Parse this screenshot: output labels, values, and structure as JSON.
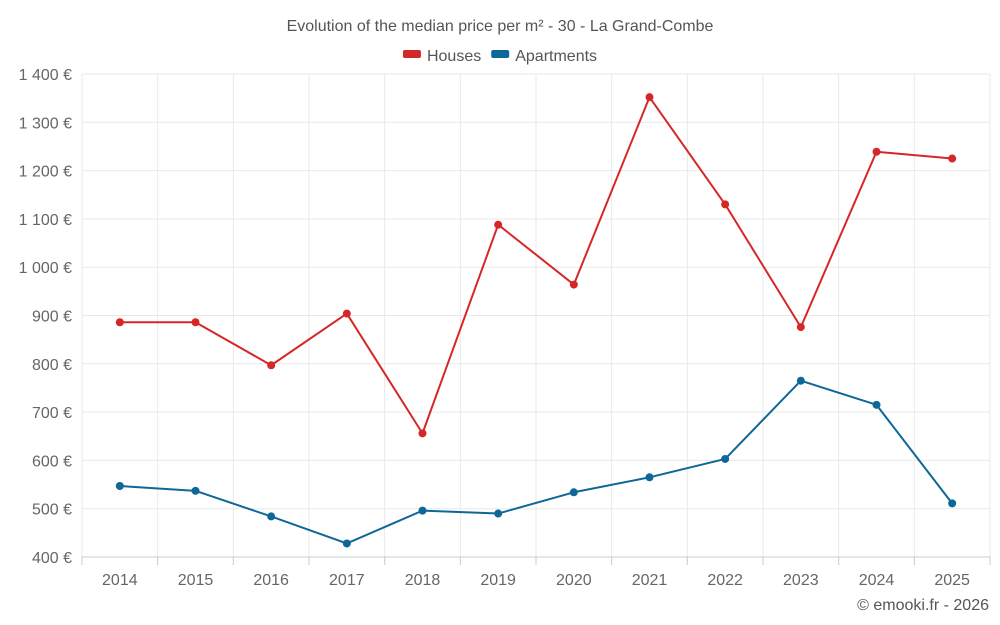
{
  "chart_data": {
    "type": "line",
    "title": "Evolution of the median price per m² - 30 - La Grand-Combe",
    "categories": [
      "2014",
      "2015",
      "2016",
      "2017",
      "2018",
      "2019",
      "2020",
      "2021",
      "2022",
      "2023",
      "2024",
      "2025"
    ],
    "series": [
      {
        "name": "Houses",
        "color": "#d62728",
        "values": [
          886,
          886,
          797,
          904,
          656,
          1088,
          964,
          1352,
          1130,
          876,
          1239,
          1225
        ]
      },
      {
        "name": "Apartments",
        "color": "#0d6797",
        "values": [
          547,
          537,
          484,
          428,
          496,
          490,
          534,
          565,
          603,
          765,
          715,
          511
        ]
      }
    ],
    "ylim": [
      400,
      1400
    ],
    "yticks": [
      400,
      500,
      600,
      700,
      800,
      900,
      1000,
      1100,
      1200,
      1300,
      1400
    ],
    "ytick_labels": [
      "400 €",
      "500 €",
      "600 €",
      "700 €",
      "800 €",
      "900 €",
      "1 000 €",
      "1 100 €",
      "1 200 €",
      "1 300 €",
      "1 400 €"
    ],
    "xlabel": "",
    "ylabel": "",
    "grid": true,
    "legend_position": "top-center"
  },
  "credit": "© emooki.fr - 2026"
}
